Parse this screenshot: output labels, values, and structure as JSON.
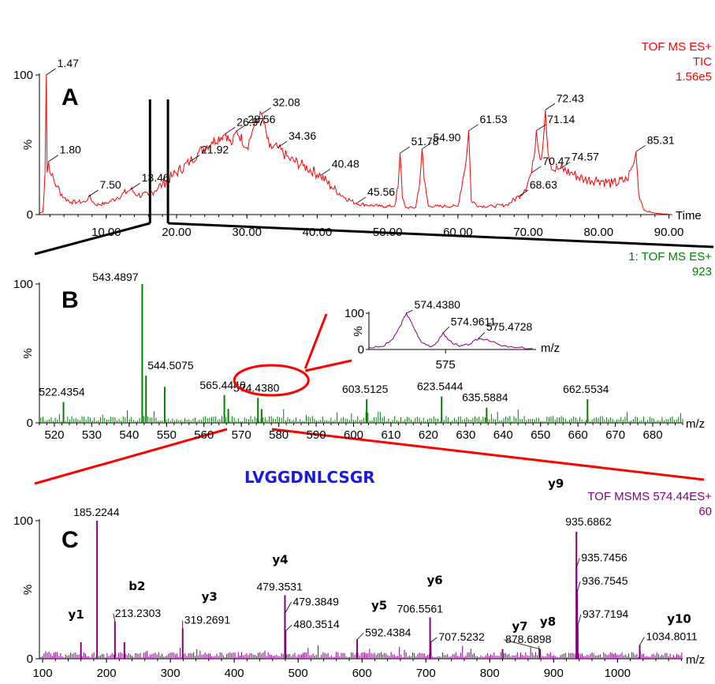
{
  "colors": {
    "A": "#ff0000",
    "B": "#008000",
    "C": "#800080",
    "zoom": "#ff0000",
    "sequence": "#1a1ae6"
  },
  "sequence": "LVGGDNLCSGR",
  "chart_data": [
    {
      "id": "A",
      "type": "line",
      "panel_label": "A",
      "header": [
        "TOF MS ES+",
        "TIC",
        "1.56e5"
      ],
      "xlabel": "Time",
      "ylabel": "%",
      "xlim": [
        0.5,
        90.5
      ],
      "ylim": [
        0,
        100
      ],
      "xticks": [
        "10.00",
        "20.00",
        "30.00",
        "40.00",
        "50.00",
        "60.00",
        "70.00",
        "80.00",
        "90.00"
      ],
      "yticks": [
        "0",
        "100"
      ],
      "x": [
        0.5,
        1.0,
        1.3,
        1.47,
        1.6,
        1.8,
        2.2,
        3.0,
        4.0,
        5.0,
        6.0,
        7.0,
        7.5,
        8.5,
        10.0,
        11.5,
        13.46,
        14.5,
        16.0,
        18.0,
        19.5,
        21.92,
        23.0,
        25.0,
        26.97,
        27.8,
        28.56,
        30.0,
        31.0,
        32.08,
        33.2,
        34.36,
        36.0,
        38.0,
        40.48,
        42.0,
        44.0,
        45.56,
        47.0,
        49.0,
        51.0,
        51.5,
        51.78,
        52.1,
        52.6,
        54.0,
        54.6,
        54.9,
        55.2,
        55.8,
        58.0,
        60.0,
        61.2,
        61.53,
        61.9,
        63.0,
        65.0,
        67.0,
        68.63,
        69.5,
        70.47,
        70.8,
        71.14,
        71.5,
        71.9,
        72.43,
        72.8,
        73.5,
        74.57,
        76.0,
        78.0,
        80.0,
        82.0,
        84.0,
        84.9,
        85.31,
        85.7,
        86.5,
        88.0,
        90.5
      ],
      "y": [
        1,
        2,
        30,
        100,
        30,
        38,
        28,
        20,
        12,
        9,
        9,
        9,
        13,
        7,
        8,
        12,
        18,
        14,
        14,
        22,
        28,
        38,
        44,
        52,
        58,
        50,
        60,
        48,
        63,
        72,
        48,
        48,
        40,
        35,
        28,
        20,
        12,
        8,
        7,
        6,
        6,
        20,
        44,
        12,
        5,
        5,
        25,
        47,
        25,
        6,
        6,
        6,
        40,
        60,
        10,
        6,
        6,
        7,
        13,
        18,
        30,
        40,
        60,
        45,
        40,
        75,
        45,
        32,
        33,
        30,
        25,
        25,
        22,
        25,
        35,
        45,
        15,
        3,
        1,
        0
      ],
      "peak_labels": [
        {
          "x": 1.47,
          "y": 100,
          "text": "1.47"
        },
        {
          "x": 1.8,
          "y": 38,
          "text": "1.80"
        },
        {
          "x": 7.5,
          "y": 13,
          "text": "7.50"
        },
        {
          "x": 13.46,
          "y": 18,
          "text": "13.46"
        },
        {
          "x": 21.92,
          "y": 38,
          "text": "21.92"
        },
        {
          "x": 26.97,
          "y": 58,
          "text": "26.97"
        },
        {
          "x": 28.56,
          "y": 60,
          "text": "28.56"
        },
        {
          "x": 32.08,
          "y": 72,
          "text": "32.08"
        },
        {
          "x": 34.36,
          "y": 48,
          "text": "34.36"
        },
        {
          "x": 40.48,
          "y": 28,
          "text": "40.48"
        },
        {
          "x": 45.56,
          "y": 8,
          "text": "45.56"
        },
        {
          "x": 51.78,
          "y": 44,
          "text": "51.78"
        },
        {
          "x": 54.9,
          "y": 47,
          "text": "54.90"
        },
        {
          "x": 61.53,
          "y": 60,
          "text": "61.53"
        },
        {
          "x": 68.63,
          "y": 13,
          "text": "68.63"
        },
        {
          "x": 70.47,
          "y": 30,
          "text": "70.47"
        },
        {
          "x": 71.14,
          "y": 60,
          "text": "71.14"
        },
        {
          "x": 72.43,
          "y": 75,
          "text": "72.43"
        },
        {
          "x": 74.57,
          "y": 33,
          "text": "74.57"
        },
        {
          "x": 85.31,
          "y": 45,
          "text": "85.31"
        }
      ],
      "zoom_window": [
        16.0,
        19.0
      ]
    },
    {
      "id": "B",
      "type": "bar",
      "panel_label": "B",
      "header": [
        "1: TOF MS ES+",
        "923"
      ],
      "xlabel": "m/z",
      "ylabel": "%",
      "xlim": [
        516,
        688
      ],
      "ylim": [
        0,
        100
      ],
      "xticks": [
        "520",
        "530",
        "540",
        "550",
        "560",
        "570",
        "580",
        "590",
        "600",
        "610",
        "620",
        "630",
        "640",
        "650",
        "660",
        "670",
        "680"
      ],
      "yticks": [
        "0",
        "100"
      ],
      "peaks": [
        {
          "x": 522.4354,
          "y": 15,
          "label": "522.4354"
        },
        {
          "x": 543.4897,
          "y": 100,
          "label": "543.4897"
        },
        {
          "x": 544.5075,
          "y": 34,
          "label": "544.5075"
        },
        {
          "x": 549.5,
          "y": 26,
          "label": ""
        },
        {
          "x": 565.444,
          "y": 20,
          "label": "565.4440"
        },
        {
          "x": 566.5,
          "y": 10,
          "label": ""
        },
        {
          "x": 574.438,
          "y": 18,
          "label": "574.4380"
        },
        {
          "x": 575.4,
          "y": 10,
          "label": ""
        },
        {
          "x": 603.5125,
          "y": 17,
          "label": "603.5125"
        },
        {
          "x": 623.5444,
          "y": 19,
          "label": "623.5444"
        },
        {
          "x": 635.5884,
          "y": 11,
          "label": "635.5884"
        },
        {
          "x": 662.5534,
          "y": 17,
          "label": "662.5534"
        }
      ],
      "highlight": "574.4380",
      "inset": {
        "type": "line",
        "xlabel": "m/z",
        "xticks": [
          "575"
        ],
        "yticks": [
          "0",
          "100"
        ],
        "xlim": [
          573.9,
          576.3
        ],
        "ylim": [
          0,
          100
        ],
        "x": [
          573.9,
          574.1,
          574.25,
          574.35,
          574.438,
          574.52,
          574.65,
          574.8,
          574.9,
          574.9611,
          575.05,
          575.2,
          575.35,
          575.4728,
          575.6,
          575.8,
          576.0,
          576.3
        ],
        "y": [
          5,
          8,
          30,
          65,
          100,
          70,
          20,
          8,
          25,
          45,
          25,
          8,
          15,
          30,
          28,
          10,
          5,
          3
        ],
        "peak_labels": [
          {
            "x": 574.438,
            "y": 100,
            "text": "574.4380"
          },
          {
            "x": 574.9611,
            "y": 45,
            "text": "574.9611"
          },
          {
            "x": 575.4728,
            "y": 30,
            "text": "575.4728"
          }
        ]
      }
    },
    {
      "id": "C",
      "type": "bar",
      "panel_label": "C",
      "header": [
        "TOF MSMS 574.44ES+",
        "60"
      ],
      "xlabel": "m/z",
      "ylabel": "%",
      "xlim": [
        95,
        1102
      ],
      "ylim": [
        0,
        100
      ],
      "xticks": [
        "100",
        "200",
        "300",
        "400",
        "500",
        "600",
        "700",
        "800",
        "900",
        "1000"
      ],
      "yticks": [
        "0",
        "100"
      ],
      "peaks": [
        {
          "x": 160,
          "y": 12,
          "label": "",
          "ion": "y1"
        },
        {
          "x": 185.2244,
          "y": 100,
          "label": "185.2244",
          "ion": ""
        },
        {
          "x": 213.2303,
          "y": 27,
          "label": "213.2303",
          "ion": "b2"
        },
        {
          "x": 228,
          "y": 12,
          "label": "",
          "ion": ""
        },
        {
          "x": 319.2691,
          "y": 22,
          "label": "319.2691",
          "ion": "y3"
        },
        {
          "x": 479.3531,
          "y": 46,
          "label": "479.3531",
          "ion": "y4"
        },
        {
          "x": 479.3849,
          "y": 33,
          "label": "479.3849",
          "ion": ""
        },
        {
          "x": 480.3514,
          "y": 20,
          "label": "480.3514",
          "ion": ""
        },
        {
          "x": 592.4384,
          "y": 14,
          "label": "592.4384",
          "ion": "y5"
        },
        {
          "x": 706.5561,
          "y": 30,
          "label": "706.5561",
          "ion": "y6"
        },
        {
          "x": 707.5232,
          "y": 12,
          "label": "707.5232",
          "ion": ""
        },
        {
          "x": 820,
          "y": 7,
          "label": "",
          "ion": "y7"
        },
        {
          "x": 878.6898,
          "y": 7,
          "label": "878.6898",
          "ion": "y8"
        },
        {
          "x": 935.6862,
          "y": 92,
          "label": "935.6862",
          "ion": "y9"
        },
        {
          "x": 935.7456,
          "y": 66,
          "label": "935.7456",
          "ion": ""
        },
        {
          "x": 936.7545,
          "y": 48,
          "label": "936.7545",
          "ion": ""
        },
        {
          "x": 937.7194,
          "y": 24,
          "label": "937.7194",
          "ion": ""
        },
        {
          "x": 1034.8011,
          "y": 10,
          "label": "1034.8011",
          "ion": "y10"
        }
      ]
    }
  ]
}
